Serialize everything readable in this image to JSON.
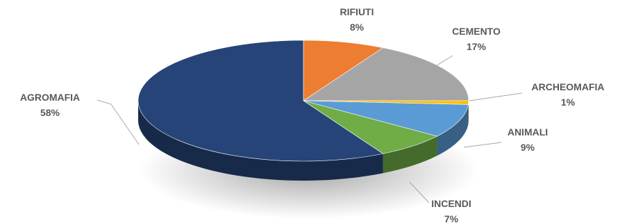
{
  "chart_data": {
    "type": "pie",
    "style": "3d-exploded-none",
    "slices": [
      {
        "label": "RIFIUTI",
        "percent_label": "8%",
        "value": 8,
        "color": "#ed7d31"
      },
      {
        "label": "CEMENTO",
        "percent_label": "17%",
        "value": 17,
        "color": "#a5a5a5"
      },
      {
        "label": "ARCHEOMAFIA",
        "percent_label": "1%",
        "value": 1,
        "color": "#ffc000"
      },
      {
        "label": "ANIMALI",
        "percent_label": "9%",
        "value": 9,
        "color": "#5b9bd5"
      },
      {
        "label": "INCENDI",
        "percent_label": "7%",
        "value": 7,
        "color": "#70ad47"
      },
      {
        "label": "AGROMAFIA",
        "percent_label": "58%",
        "value": 58,
        "color": "#264478"
      }
    ],
    "legend": "none",
    "data_labels": "outside-with-leader-lines"
  }
}
